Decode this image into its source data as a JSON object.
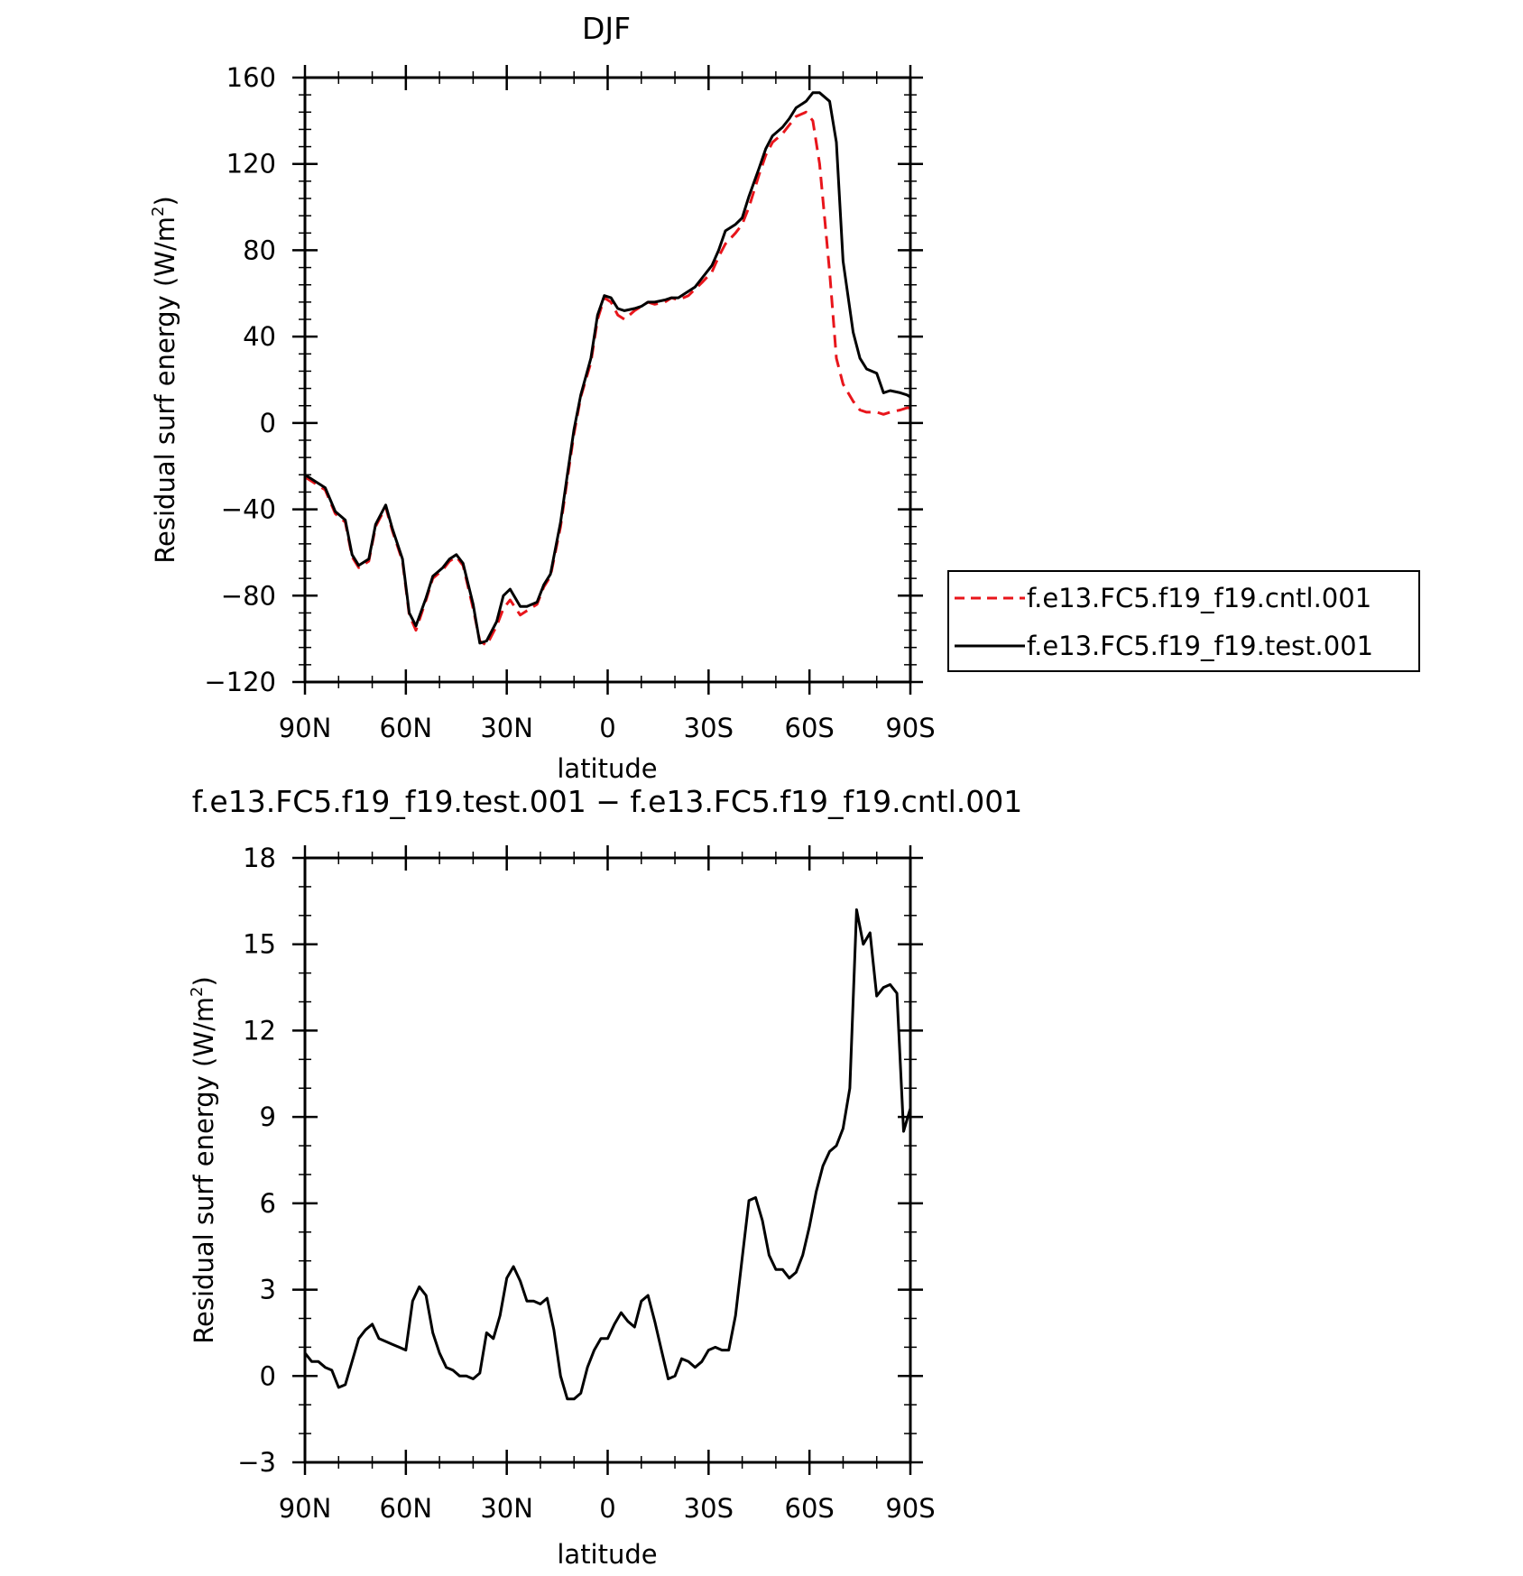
{
  "chart_data": [
    {
      "type": "line",
      "title": "DJF",
      "xlabel": "latitude",
      "ylabel": "Residual surf energy (W/m²)",
      "ylabel_main": "Residual surf energy (W/m",
      "ylabel_sup": "2",
      "ylabel_close": ")",
      "xlim": [
        90,
        -90
      ],
      "ylim": [
        -120,
        160
      ],
      "xticks": [
        {
          "value": 90,
          "label": "90N"
        },
        {
          "value": 60,
          "label": "60N"
        },
        {
          "value": 30,
          "label": "30N"
        },
        {
          "value": 0,
          "label": "0"
        },
        {
          "value": -30,
          "label": "30S"
        },
        {
          "value": -60,
          "label": "60S"
        },
        {
          "value": -90,
          "label": "90S"
        }
      ],
      "yticks": [
        {
          "value": 160,
          "label": "160"
        },
        {
          "value": 120,
          "label": "120"
        },
        {
          "value": 80,
          "label": "80"
        },
        {
          "value": 40,
          "label": "40"
        },
        {
          "value": 0,
          "label": "0"
        },
        {
          "value": -40,
          "label": "−40"
        },
        {
          "value": -80,
          "label": "−80"
        },
        {
          "value": -120,
          "label": "−120"
        }
      ],
      "legend_position": "right",
      "series": [
        {
          "name": "f.e13.FC5.f19_f19.cntl.001",
          "color": "#e8151b",
          "dash": true,
          "x": [
            90,
            87,
            84,
            81,
            78,
            76,
            74,
            71,
            69,
            66,
            64,
            61,
            59,
            57,
            54,
            52,
            49,
            47,
            45,
            43,
            40,
            38,
            36,
            33,
            31,
            29,
            26,
            24,
            21,
            19,
            17,
            14,
            12,
            10,
            8,
            5,
            3,
            1,
            -1,
            -3,
            -5,
            -8,
            -10,
            -12,
            -14,
            -17,
            -19,
            -21,
            -24,
            -26,
            -28,
            -31,
            -33,
            -35,
            -38,
            -40,
            -42,
            -45,
            -47,
            -49,
            -52,
            -54,
            -56,
            -59,
            -61,
            -63,
            -66,
            -68,
            -70,
            -73,
            -75,
            -77,
            -80,
            -82,
            -84,
            -87,
            -89,
            -90
          ],
          "y": [
            -25,
            -28,
            -31,
            -42,
            -46,
            -62,
            -67,
            -64,
            -48,
            -39,
            -50,
            -64,
            -89,
            -96,
            -82,
            -72,
            -68,
            -64,
            -62,
            -66,
            -86,
            -101,
            -103,
            -94,
            -86,
            -82,
            -89,
            -87,
            -84,
            -76,
            -71,
            -48,
            -26,
            -5,
            12,
            28,
            48,
            58,
            56,
            50,
            48,
            52,
            54,
            56,
            55,
            56,
            58,
            57,
            59,
            62,
            65,
            70,
            77,
            83,
            88,
            92,
            100,
            115,
            124,
            130,
            134,
            138,
            142,
            144,
            140,
            120,
            70,
            30,
            18,
            10,
            6,
            5,
            5,
            4,
            5,
            6,
            7,
            7
          ]
        },
        {
          "name": "f.e13.FC5.f19_f19.test.001",
          "color": "#000000",
          "dash": false,
          "x": [
            90,
            87,
            84,
            81,
            78,
            76,
            74,
            71,
            69,
            66,
            64,
            61,
            59,
            57,
            54,
            52,
            49,
            47,
            45,
            43,
            40,
            38,
            36,
            33,
            31,
            29,
            26,
            24,
            21,
            19,
            17,
            14,
            12,
            10,
            8,
            5,
            3,
            1,
            -1,
            -3,
            -5,
            -8,
            -10,
            -12,
            -14,
            -17,
            -19,
            -21,
            -24,
            -26,
            -28,
            -31,
            -33,
            -35,
            -38,
            -40,
            -42,
            -45,
            -47,
            -49,
            -52,
            -54,
            -56,
            -59,
            -61,
            -63,
            -66,
            -68,
            -70,
            -73,
            -75,
            -77,
            -80,
            -82,
            -84,
            -87,
            -89,
            -90
          ],
          "y": [
            -24,
            -27,
            -30,
            -41,
            -45,
            -61,
            -66,
            -63,
            -47,
            -38,
            -49,
            -63,
            -88,
            -94,
            -81,
            -71,
            -67,
            -63,
            -61,
            -65,
            -84,
            -102,
            -101,
            -92,
            -80,
            -77,
            -85,
            -85,
            -83,
            -75,
            -70,
            -46,
            -24,
            -3,
            13,
            30,
            50,
            59,
            58,
            53,
            52,
            53,
            54,
            56,
            56,
            57,
            58,
            58,
            61,
            63,
            67,
            73,
            80,
            89,
            92,
            95,
            105,
            118,
            127,
            133,
            137,
            141,
            146,
            149,
            153,
            153,
            149,
            130,
            75,
            42,
            30,
            25,
            23,
            14,
            15,
            14,
            13,
            12
          ]
        }
      ]
    },
    {
      "type": "line",
      "title": "f.e13.FC5.f19_f19.test.001 − f.e13.FC5.f19_f19.cntl.001",
      "xlabel": "latitude",
      "ylabel": "Residual surf energy (W/m²)",
      "ylabel_main": "Residual surf energy (W/m",
      "ylabel_sup": "2",
      "ylabel_close": ")",
      "xlim": [
        90,
        -90
      ],
      "ylim": [
        -3,
        18
      ],
      "xticks": [
        {
          "value": 90,
          "label": "90N"
        },
        {
          "value": 60,
          "label": "60N"
        },
        {
          "value": 30,
          "label": "30N"
        },
        {
          "value": 0,
          "label": "0"
        },
        {
          "value": -30,
          "label": "30S"
        },
        {
          "value": -60,
          "label": "60S"
        },
        {
          "value": -90,
          "label": "90S"
        }
      ],
      "yticks": [
        {
          "value": 18,
          "label": "18"
        },
        {
          "value": 15,
          "label": "15"
        },
        {
          "value": 12,
          "label": "12"
        },
        {
          "value": 9,
          "label": "9"
        },
        {
          "value": 6,
          "label": "6"
        },
        {
          "value": 3,
          "label": "3"
        },
        {
          "value": 0,
          "label": "0"
        },
        {
          "value": -3,
          "label": "−3"
        }
      ],
      "series": [
        {
          "color": "#000000",
          "dash": false,
          "x": [
            90,
            88,
            86,
            84,
            82,
            80,
            78,
            76,
            74,
            72,
            70,
            68,
            66,
            64,
            62,
            60,
            58,
            56,
            54,
            52,
            50,
            48,
            46,
            44,
            42,
            40,
            38,
            36,
            34,
            32,
            30,
            28,
            26,
            24,
            22,
            20,
            18,
            16,
            14,
            12,
            10,
            8,
            6,
            4,
            2,
            0,
            -2,
            -4,
            -6,
            -8,
            -10,
            -12,
            -14,
            -16,
            -18,
            -20,
            -22,
            -24,
            -26,
            -28,
            -30,
            -32,
            -34,
            -36,
            -38,
            -40,
            -42,
            -44,
            -46,
            -48,
            -50,
            -52,
            -54,
            -56,
            -58,
            -60,
            -62,
            -64,
            -66,
            -68,
            -70,
            -72,
            -74,
            -76,
            -78,
            -80,
            -82,
            -84,
            -86,
            -88,
            -90
          ],
          "y": [
            0.8,
            0.5,
            0.5,
            0.3,
            0.2,
            -0.4,
            -0.3,
            0.5,
            1.3,
            1.6,
            1.8,
            1.3,
            1.2,
            1.1,
            1.0,
            0.9,
            2.6,
            3.1,
            2.8,
            1.5,
            0.8,
            0.3,
            0.2,
            0.0,
            0.0,
            -0.1,
            0.1,
            1.5,
            1.3,
            2.1,
            3.4,
            3.8,
            3.3,
            2.6,
            2.6,
            2.5,
            2.7,
            1.6,
            0.0,
            -0.8,
            -0.8,
            -0.6,
            0.3,
            0.9,
            1.3,
            1.3,
            1.8,
            2.2,
            1.9,
            1.7,
            2.6,
            2.8,
            1.9,
            0.9,
            -0.1,
            0.0,
            0.6,
            0.5,
            0.3,
            0.5,
            0.9,
            1.0,
            0.9,
            0.9,
            2.1,
            4.1,
            6.1,
            6.2,
            5.4,
            4.2,
            3.7,
            3.7,
            3.4,
            3.6,
            4.2,
            5.2,
            6.4,
            7.3,
            7.8,
            8.0,
            8.6,
            10.0,
            16.2,
            15.0,
            15.4,
            13.2,
            13.5,
            13.6,
            13.3,
            8.5,
            9.3
          ]
        }
      ]
    }
  ]
}
